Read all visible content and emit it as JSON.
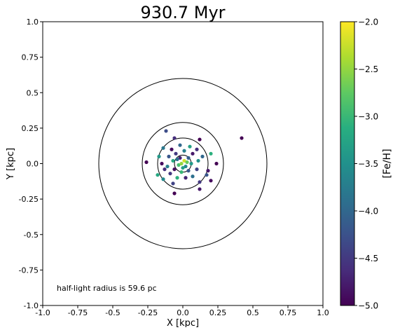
{
  "chart_data": {
    "type": "scatter",
    "title": "930.7 Myr",
    "xlabel": "X [kpc]",
    "ylabel": "Y [kpc]",
    "xlim": [
      -1.0,
      1.0
    ],
    "ylim": [
      -1.0,
      1.0
    ],
    "x_ticks": [
      -1.0,
      -0.75,
      -0.5,
      -0.25,
      0.0,
      0.25,
      0.5,
      0.75,
      1.0
    ],
    "x_tick_labels": [
      "-1.0",
      "-0.75",
      "-0.5",
      "-0.25",
      "0.0",
      "0.25",
      "0.5",
      "0.75",
      "1.0"
    ],
    "y_ticks": [
      1.0,
      0.75,
      0.5,
      0.25,
      0.0,
      -0.25,
      -0.5,
      -0.75,
      -1.0
    ],
    "y_tick_labels": [
      "1.0",
      "0.75",
      "0.5",
      "0.25",
      "0.0",
      "-0.25",
      "-0.5",
      "-0.75",
      "-1.0"
    ],
    "grid": false,
    "annotation": "half-light radius is 59.6 pc",
    "circles_radius_kpc": [
      0.6,
      0.29,
      0.18,
      0.06
    ],
    "colorbar": {
      "label": "[Fe/H]",
      "range": [
        -5.0,
        -2.0
      ],
      "colormap": "viridis",
      "ticks": [
        -2.0,
        -2.5,
        -3.0,
        -3.5,
        -4.0,
        -4.5,
        -5.0
      ],
      "tick_labels": [
        "−2.0",
        "−2.5",
        "−3.0",
        "−3.5",
        "−4.0",
        "−4.5",
        "−5.0"
      ]
    },
    "points": [
      {
        "x": 0.42,
        "y": 0.18,
        "feh": -5.0
      },
      {
        "x": -0.26,
        "y": 0.01,
        "feh": -5.0
      },
      {
        "x": -0.12,
        "y": 0.23,
        "feh": -4.3
      },
      {
        "x": -0.06,
        "y": 0.18,
        "feh": -4.6
      },
      {
        "x": 0.12,
        "y": 0.17,
        "feh": -5.0
      },
      {
        "x": -0.14,
        "y": 0.11,
        "feh": -3.8
      },
      {
        "x": -0.17,
        "y": 0.05,
        "feh": -3.4
      },
      {
        "x": -0.15,
        "y": 0.0,
        "feh": -4.9
      },
      {
        "x": -0.13,
        "y": -0.04,
        "feh": -4.6
      },
      {
        "x": -0.18,
        "y": -0.08,
        "feh": -3.2
      },
      {
        "x": -0.14,
        "y": -0.11,
        "feh": -3.6
      },
      {
        "x": -0.07,
        "y": -0.14,
        "feh": -4.4
      },
      {
        "x": -0.06,
        "y": -0.21,
        "feh": -5.0
      },
      {
        "x": 0.12,
        "y": -0.13,
        "feh": -4.5
      },
      {
        "x": 0.12,
        "y": -0.18,
        "feh": -4.8
      },
      {
        "x": 0.17,
        "y": -0.08,
        "feh": -4.2
      },
      {
        "x": 0.2,
        "y": 0.07,
        "feh": -3.1
      },
      {
        "x": 0.24,
        "y": 0.0,
        "feh": -5.0
      },
      {
        "x": 0.18,
        "y": -0.05,
        "feh": -4.8
      },
      {
        "x": 0.2,
        "y": -0.12,
        "feh": -4.9
      },
      {
        "x": 0.14,
        "y": 0.05,
        "feh": -4.0
      },
      {
        "x": 0.1,
        "y": 0.1,
        "feh": -4.6
      },
      {
        "x": 0.05,
        "y": 0.12,
        "feh": -3.3
      },
      {
        "x": -0.02,
        "y": 0.13,
        "feh": -4.0
      },
      {
        "x": -0.08,
        "y": 0.1,
        "feh": -4.9
      },
      {
        "x": -0.1,
        "y": 0.05,
        "feh": -4.2
      },
      {
        "x": -0.11,
        "y": -0.02,
        "feh": -3.7
      },
      {
        "x": -0.09,
        "y": -0.07,
        "feh": -4.5
      },
      {
        "x": -0.04,
        "y": -0.1,
        "feh": -3.1
      },
      {
        "x": 0.02,
        "y": -0.1,
        "feh": -4.7
      },
      {
        "x": 0.07,
        "y": -0.09,
        "feh": -3.9
      },
      {
        "x": 0.1,
        "y": -0.04,
        "feh": -4.4
      },
      {
        "x": 0.11,
        "y": 0.02,
        "feh": -3.5
      },
      {
        "x": 0.07,
        "y": 0.07,
        "feh": -4.8
      },
      {
        "x": 0.01,
        "y": 0.09,
        "feh": -3.7
      },
      {
        "x": -0.05,
        "y": 0.07,
        "feh": -4.5
      },
      {
        "x": -0.07,
        "y": 0.02,
        "feh": -3.2
      },
      {
        "x": -0.06,
        "y": -0.04,
        "feh": -4.9
      },
      {
        "x": -0.01,
        "y": -0.06,
        "feh": -3.0
      },
      {
        "x": 0.04,
        "y": -0.05,
        "feh": -4.2
      },
      {
        "x": 0.06,
        "y": 0.0,
        "feh": -3.4
      },
      {
        "x": 0.04,
        "y": 0.04,
        "feh": -4.1
      },
      {
        "x": -0.02,
        "y": 0.04,
        "feh": -4.7
      },
      {
        "x": -0.03,
        "y": -0.01,
        "feh": -2.9
      },
      {
        "x": 0.02,
        "y": -0.02,
        "feh": -3.6
      },
      {
        "x": 0.01,
        "y": 0.02,
        "feh": -2.2
      },
      {
        "x": -0.01,
        "y": 0.0,
        "feh": -2.5
      },
      {
        "x": 0.0,
        "y": -0.03,
        "feh": -3.3
      },
      {
        "x": 0.03,
        "y": 0.01,
        "feh": -2.7
      },
      {
        "x": -0.04,
        "y": 0.03,
        "feh": -3.9
      }
    ]
  }
}
